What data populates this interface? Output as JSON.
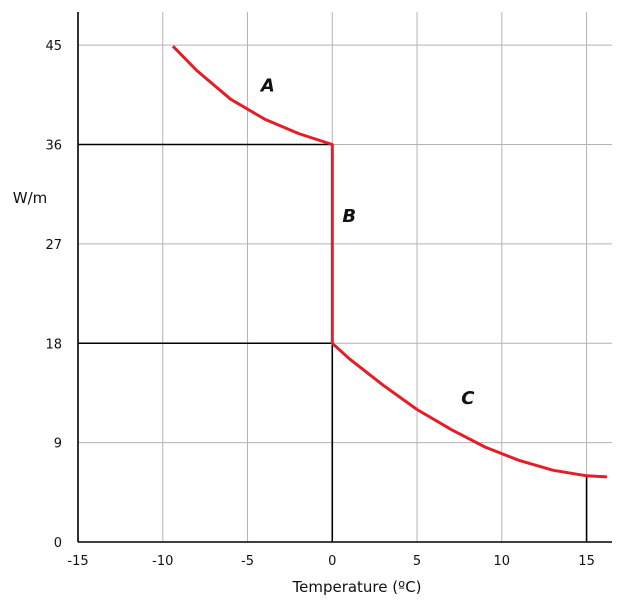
{
  "chart_data": {
    "type": "line",
    "title": "",
    "xlabel": "Temperature (ºC)",
    "ylabel": "W/m",
    "xlim": [
      -15,
      16.5
    ],
    "ylim": [
      0,
      48
    ],
    "x_ticks": [
      -15,
      -10,
      -5,
      0,
      5,
      10,
      15
    ],
    "y_ticks": [
      0,
      9,
      18,
      27,
      36,
      45
    ],
    "x_tick_labels": [
      "-15",
      "-10",
      "-5",
      "0",
      "5",
      "10",
      "15"
    ],
    "y_tick_labels": [
      "0",
      "9",
      "18",
      "27",
      "36",
      "45"
    ],
    "grid": true,
    "series": [
      {
        "color": "#e41e26",
        "x": [
          -9.4,
          -8,
          -6,
          -4,
          -2,
          -1,
          0,
          0,
          1,
          3,
          5,
          7,
          9,
          11,
          13,
          15,
          16.2
        ],
        "y": [
          44.9,
          42.7,
          40.1,
          38.3,
          37,
          36.5,
          36,
          18,
          16.6,
          14.2,
          12,
          10.2,
          8.6,
          7.4,
          6.5,
          6,
          5.9
        ]
      }
    ],
    "reference_lines": [
      {
        "x": [
          -15,
          0
        ],
        "y": [
          36,
          36
        ]
      },
      {
        "x": [
          -15,
          0
        ],
        "y": [
          18,
          18
        ]
      },
      {
        "x": [
          0,
          0
        ],
        "y": [
          0,
          18
        ]
      },
      {
        "x": [
          15,
          15
        ],
        "y": [
          0,
          6
        ]
      }
    ],
    "annotations": [
      {
        "text": "A",
        "x": -3.8,
        "y": 40.8
      },
      {
        "text": "B",
        "x": 1.0,
        "y": 29.0
      },
      {
        "text": "C",
        "x": 8.0,
        "y": 12.5
      }
    ]
  }
}
